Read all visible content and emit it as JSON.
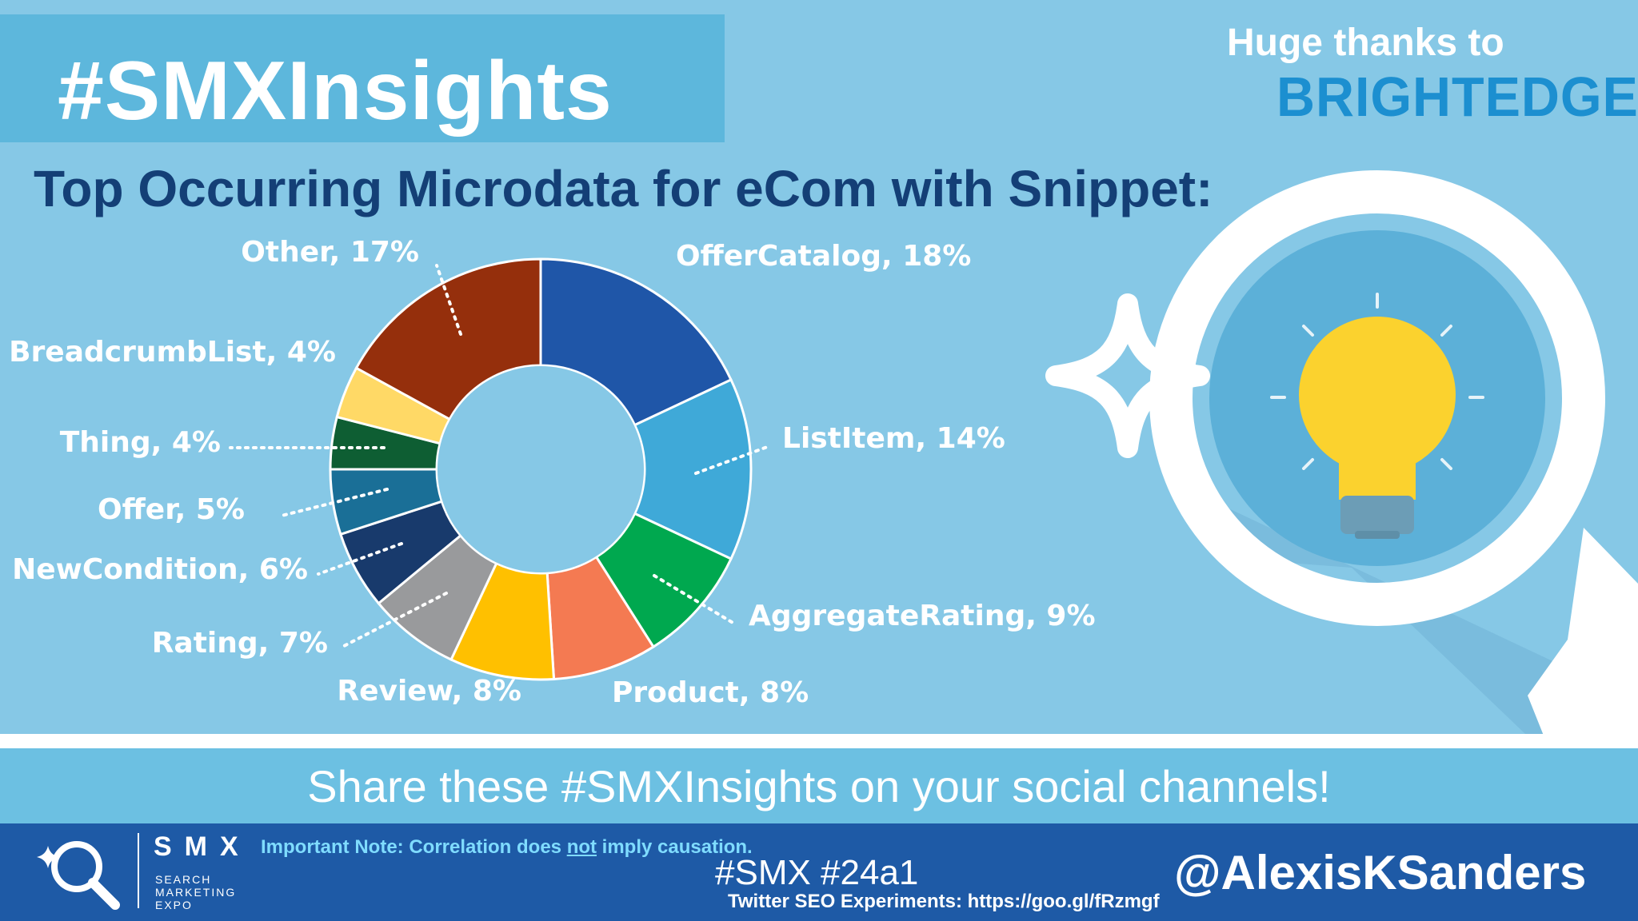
{
  "header": {
    "banner_title": "#SMXInsights",
    "thanks_text": "Huge thanks to",
    "sponsor_name": "BRIGHTEDGE"
  },
  "chart_data": {
    "type": "pie",
    "title": "Top Occurring Microdata for eCom with Snippet:",
    "donut": true,
    "slices": [
      {
        "name": "OfferCatalog",
        "label": "OfferCatalog, 18%",
        "value": 18,
        "color": "#1f56a8"
      },
      {
        "name": "ListItem",
        "label": "ListItem, 14%",
        "value": 14,
        "color": "#3fa9d8"
      },
      {
        "name": "AggregateRating",
        "label": "AggregateRating, 9%",
        "value": 9,
        "color": "#00a84f"
      },
      {
        "name": "Product",
        "label": "Product, 8%",
        "value": 8,
        "color": "#f47a52"
      },
      {
        "name": "Review",
        "label": "Review, 8%",
        "value": 8,
        "color": "#ffc000"
      },
      {
        "name": "Rating",
        "label": "Rating, 7%",
        "value": 7,
        "color": "#999a9c"
      },
      {
        "name": "NewCondition",
        "label": "NewCondition, 6%",
        "value": 6,
        "color": "#183a6c"
      },
      {
        "name": "Offer",
        "label": "Offer, 5%",
        "value": 5,
        "color": "#1a6f97"
      },
      {
        "name": "Thing",
        "label": "Thing, 4%",
        "value": 4,
        "color": "#0e5e33"
      },
      {
        "name": "BreadcrumbList",
        "label": "BreadcrumbList, 4%",
        "value": 4,
        "color": "#ffd966"
      },
      {
        "name": "Other",
        "label": "Other, 17%",
        "value": 17,
        "color": "#952f0c"
      }
    ]
  },
  "share_strip": {
    "text": "Share these #SMXInsights on your social channels!"
  },
  "footer": {
    "smx_mark": "SMX",
    "smx_subtitle": "SEARCH\nMARKETING\nEXPO",
    "note_before": "Important Note: Correlation does ",
    "note_emphasis": "not",
    "note_after": " imply causation.",
    "hashtags": "#SMX #24a1",
    "experiments": "Twitter SEO Experiments: https://goo.gl/fRzmgf",
    "handle": "@AlexisKSanders"
  },
  "colors": {
    "background": "#86c8e6",
    "banner": "#5db7dc",
    "title_navy": "#143f76",
    "sponsor_blue": "#1c8fd0",
    "footer_blue": "#1e5aa6",
    "note_cyan": "#7fdcff",
    "bulb_yellow": "#fbd22e"
  },
  "icons": {
    "illustration": "magnifier-lightbulb-icon",
    "sparkle": "sparkle-icon",
    "logo": "smx-magnifier-logo-icon"
  }
}
